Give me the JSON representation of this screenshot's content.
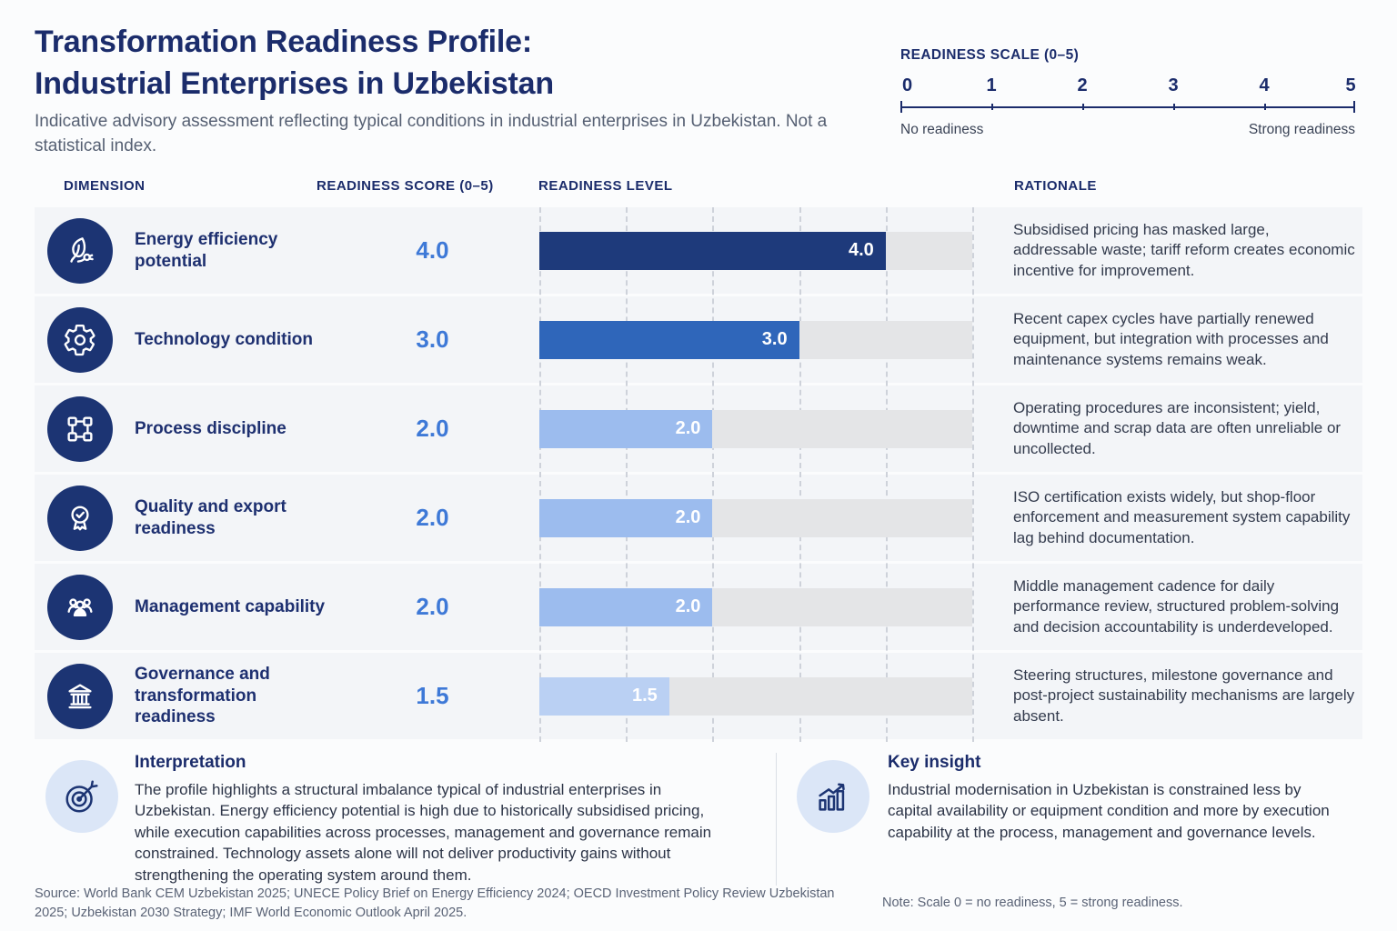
{
  "header": {
    "title_line1": "Transformation Readiness Profile:",
    "title_line2": "Industrial Enterprises in Uzbekistan",
    "subtitle": "Indicative advisory assessment reflecting typical conditions in industrial enterprises in Uzbekistan. Not a statistical index."
  },
  "scale_legend": {
    "title": "READINESS SCALE (0–5)",
    "ticks": [
      "0",
      "1",
      "2",
      "3",
      "4",
      "5"
    ],
    "left_label": "No readiness",
    "right_label": "Strong readiness"
  },
  "table": {
    "columns": [
      "DIMENSION",
      "READINESS SCORE (0–5)",
      "READINESS LEVEL",
      "RATIONALE"
    ],
    "rows": [
      {
        "dimension": "Energy efficiency potential",
        "icon": "leaf-plug-icon",
        "score": 4.0,
        "score_label": "4.0",
        "bar_label": "4.0",
        "bar_color": "#1e3a7b",
        "rationale": "Subsidised pricing has masked large, addressable waste; tariff reform creates economic incentive for improvement."
      },
      {
        "dimension": "Technology condition",
        "icon": "gear-icon",
        "score": 3.0,
        "score_label": "3.0",
        "bar_label": "3.0",
        "bar_color": "#2f66ba",
        "rationale": "Recent capex cycles have partially renewed equipment, but integration with processes and maintenance systems remains weak."
      },
      {
        "dimension": "Process discipline",
        "icon": "flowchart-icon",
        "score": 2.0,
        "score_label": "2.0",
        "bar_label": "2.0",
        "bar_color": "#9cbcee",
        "rationale": "Operating procedures are inconsistent; yield, downtime and scrap data are often unreliable or uncollected."
      },
      {
        "dimension": "Quality and export readiness",
        "icon": "medal-icon",
        "score": 2.0,
        "score_label": "2.0",
        "bar_label": "2.0",
        "bar_color": "#9cbcee",
        "rationale": "ISO certification exists widely, but shop-floor enforcement and measurement system capability lag behind documentation."
      },
      {
        "dimension": "Management capability",
        "icon": "people-icon",
        "score": 2.0,
        "score_label": "2.0",
        "bar_label": "2.0",
        "bar_color": "#9cbcee",
        "rationale": "Middle management cadence for daily performance review, structured problem-solving and decision accountability is underdeveloped."
      },
      {
        "dimension": "Governance and transformation readiness",
        "icon": "bank-icon",
        "score": 1.5,
        "score_label": "1.5",
        "bar_label": "1.5",
        "bar_color": "#bad0f3",
        "rationale": "Steering structures, milestone governance and post-project sustainability mechanisms are largely absent."
      }
    ]
  },
  "chart_data": {
    "type": "bar",
    "orientation": "horizontal",
    "title": "Transformation Readiness Profile: Industrial Enterprises in Uzbekistan",
    "categories": [
      "Energy efficiency potential",
      "Technology condition",
      "Process discipline",
      "Quality and export readiness",
      "Management capability",
      "Governance and transformation readiness"
    ],
    "values": [
      4.0,
      3.0,
      2.0,
      2.0,
      2.0,
      1.5
    ],
    "xlabel": "Readiness score (0–5)",
    "ylabel": "Dimension",
    "xlim": [
      0,
      5
    ],
    "grid": "vertical-dashed",
    "data_labels": [
      "4.0",
      "3.0",
      "2.0",
      "2.0",
      "2.0",
      "1.5"
    ],
    "scale_note": "0 = no readiness, 5 = strong readiness"
  },
  "interpretation": {
    "heading": "Interpretation",
    "icon": "target-icon",
    "body": "The profile highlights a structural imbalance typical of industrial enterprises in Uzbekistan. Energy efficiency potential is high due to historically subsidised pricing, while execution capabilities across processes, management and governance remain constrained. Technology assets alone will not deliver productivity gains without strengthening the operating system around them."
  },
  "key_insight": {
    "heading": "Key insight",
    "icon": "growth-chart-icon",
    "body": "Industrial modernisation in Uzbekistan is constrained less by capital availability or equipment condition and more by execution capability at the process, management and governance levels."
  },
  "footer": {
    "source": "Source: World Bank CEM Uzbekistan 2025; UNECE Policy Brief on Energy Efficiency 2024; OECD Investment Policy Review Uzbekistan 2025; Uzbekistan 2030 Strategy; IMF World Economic Outlook April 2025.",
    "note": "Note: Scale 0 = no readiness, 5 = strong readiness."
  },
  "colors": {
    "accent_navy": "#1b2c6b",
    "score_blue": "#3e79d7",
    "bar_dark": "#1e3a7b",
    "bar_medium": "#2f66ba",
    "bar_light": "#9cbcee",
    "bar_lighter": "#bad0f3",
    "bar_track": "#e4e5e7",
    "row_band": "#f3f5f8",
    "badge_bg": "#dbe6f7"
  }
}
